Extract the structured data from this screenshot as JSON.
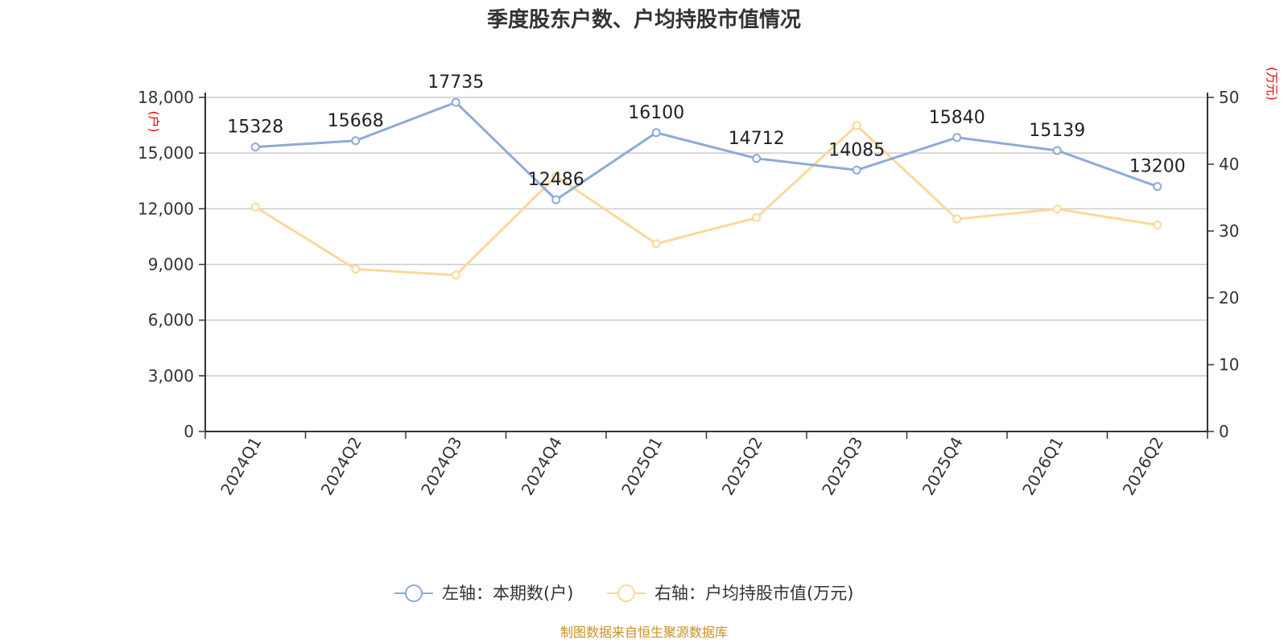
{
  "chart_data": {
    "type": "line",
    "title": "季度股东户数、户均持股市值情况",
    "categories": [
      "2024Q1",
      "2024Q2",
      "2024Q3",
      "2024Q4",
      "2025Q1",
      "2025Q2",
      "2025Q3",
      "2025Q4",
      "2026Q1",
      "2026Q2"
    ],
    "left_axis": {
      "unit": "(户)",
      "min": 0,
      "max": 18000,
      "ticks": [
        "0",
        "3,000",
        "6,000",
        "9,000",
        "12,000",
        "15,000",
        "18,000"
      ]
    },
    "right_axis": {
      "unit": "(万元)",
      "min": 0,
      "max": 50,
      "ticks": [
        "0",
        "10",
        "20",
        "30",
        "40",
        "50"
      ]
    },
    "series": [
      {
        "name": "左轴：本期数(户)",
        "axis": "left",
        "color": "#8eaad8",
        "values": [
          15328,
          15668,
          17735,
          12486,
          16100,
          14712,
          14085,
          15840,
          15139,
          13200
        ],
        "labels": [
          "15328",
          "15668",
          "17735",
          "12486",
          "16100",
          "14712",
          "14085",
          "15840",
          "15139",
          "13200"
        ]
      },
      {
        "name": "右轴：户均持股市值(万元)",
        "axis": "right",
        "color": "#fcd89a",
        "values": [
          33.6,
          24.3,
          23.4,
          38.2,
          28.1,
          32.0,
          45.8,
          31.8,
          33.3,
          30.9
        ]
      }
    ],
    "grid": true,
    "legend_position": "bottom-center"
  },
  "footer": {
    "source": "制图数据来自恒生聚源数据库"
  }
}
